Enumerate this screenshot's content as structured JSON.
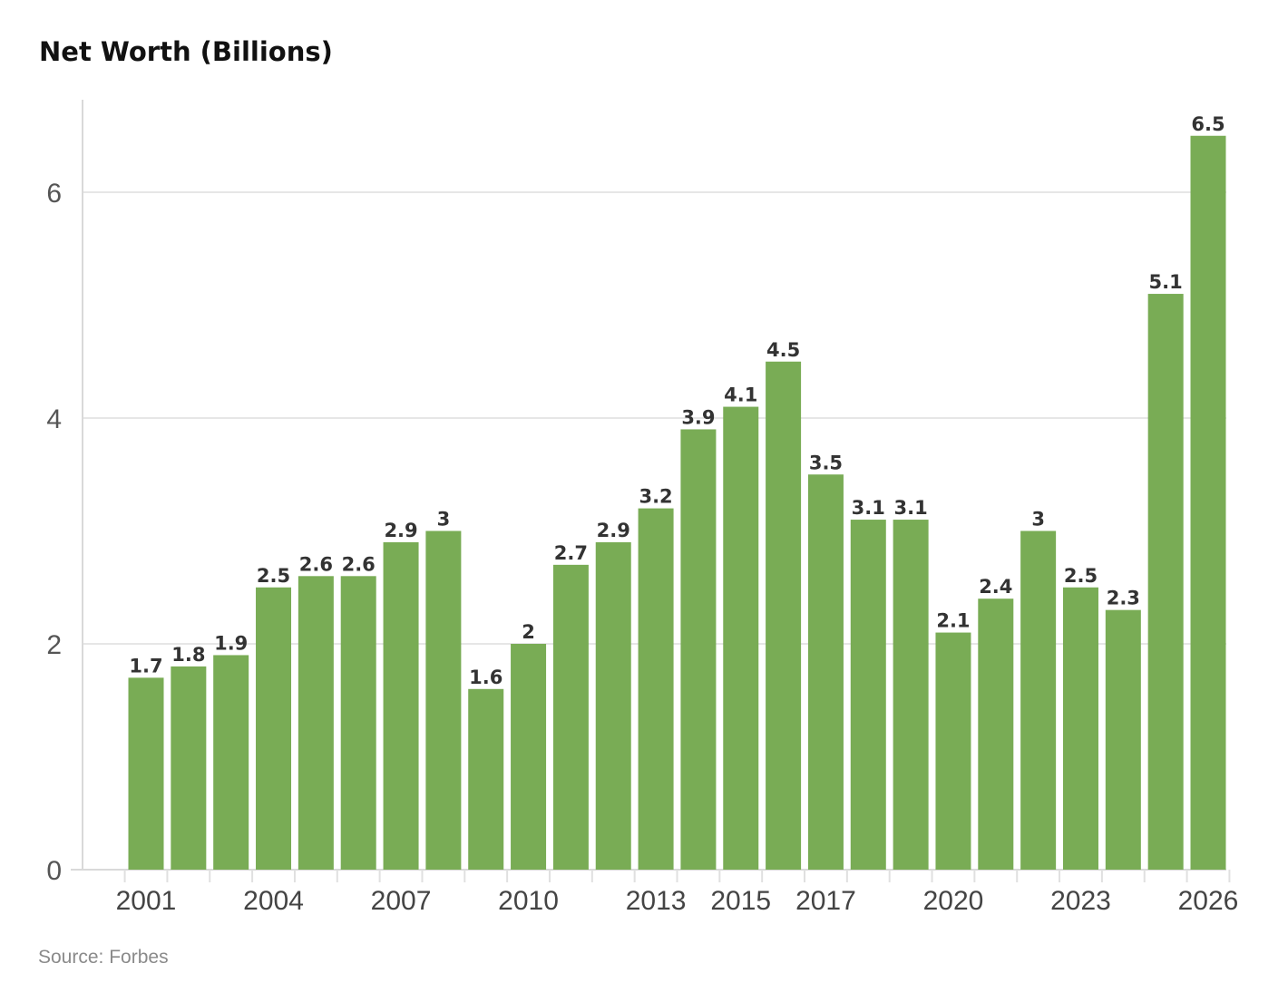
{
  "chart_data": {
    "type": "bar",
    "title": "Net Worth (Billions)",
    "source": "Source: Forbes",
    "categories": [
      "2001",
      "2002",
      "2003",
      "2004",
      "2005",
      "2006",
      "2007",
      "2008",
      "2009",
      "2010",
      "2011",
      "2012",
      "2013",
      "2014",
      "2015",
      "2016",
      "2017",
      "2018",
      "2019",
      "2020",
      "2021",
      "2022",
      "2023",
      "2024",
      "2025",
      "2026"
    ],
    "visible_x_ticks": [
      "2001",
      "2004",
      "2007",
      "2010",
      "2013",
      "2015",
      "2017",
      "2020",
      "2023",
      "2026"
    ],
    "values": [
      1.7,
      1.8,
      1.9,
      2.5,
      2.6,
      2.6,
      2.9,
      3,
      1.6,
      2,
      2.7,
      2.9,
      3.2,
      3.9,
      4.1,
      4.5,
      3.5,
      3.1,
      3.1,
      2.1,
      2.4,
      3,
      2.5,
      2.3,
      5.1,
      6.5
    ],
    "xlabel": "",
    "ylabel": "",
    "ylim": [
      0,
      6.8
    ],
    "y_ticks": [
      0,
      2,
      4,
      6
    ],
    "grid": "horizontal",
    "bar_color": "#79ac55"
  }
}
